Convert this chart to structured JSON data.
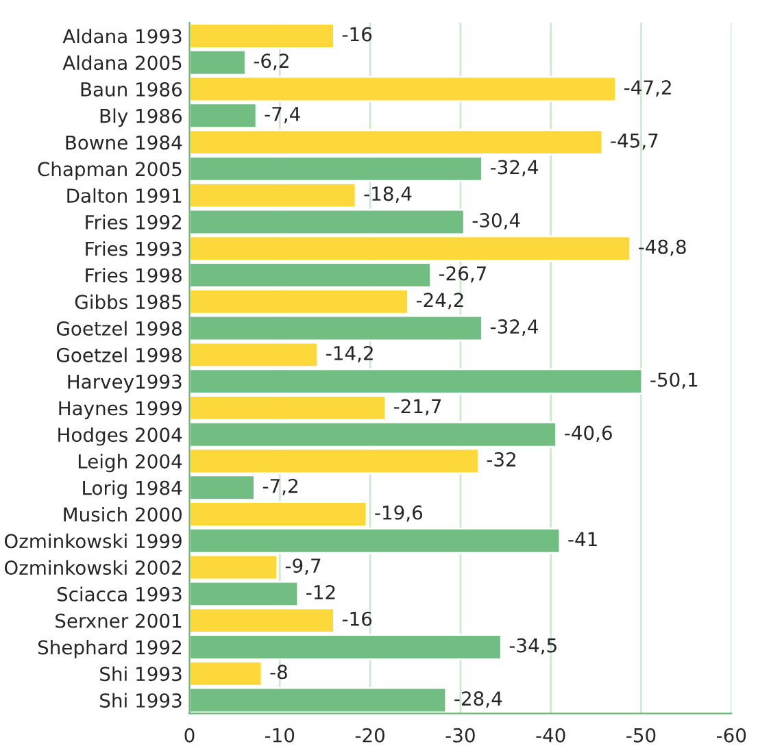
{
  "chart_data": {
    "type": "bar",
    "orientation": "horizontal",
    "categories": [
      "Aldana 1993",
      "Aldana 2005",
      "Baun 1986",
      "Bly 1986",
      "Bowne 1984",
      "Chapman 2005",
      "Dalton 1991",
      "Fries 1992",
      "Fries 1993",
      "Fries 1998",
      "Gibbs 1985",
      "Goetzel 1998",
      "Goetzel 1998",
      "Harvey1993",
      "Haynes 1999",
      "Hodges 2004",
      "Leigh 2004",
      "Lorig 1984",
      "Musich 2000",
      "Ozminkowski 1999",
      "Ozminkowski 2002",
      "Sciacca 1993",
      "Serxner 2001",
      "Shephard 1992",
      "Shi 1993",
      "Shi 1993"
    ],
    "values": [
      -16,
      -6.2,
      -47.2,
      -7.4,
      -45.7,
      -32.4,
      -18.4,
      -30.4,
      -48.8,
      -26.7,
      -24.2,
      -32.4,
      -14.2,
      -50.1,
      -21.7,
      -40.6,
      -32,
      -7.2,
      -19.6,
      -41,
      -9.7,
      -12,
      -16,
      -34.5,
      -8,
      -28.4
    ],
    "value_labels": [
      "-16",
      "-6,2",
      "-47,2",
      "-7,4",
      "-45,7",
      "-32,4",
      "-18,4",
      "-30,4",
      "-48,8",
      "-26,7",
      "-24,2",
      "-32,4",
      "-14,2",
      "-50,1",
      "-21,7",
      "-40,6",
      "-32",
      "-7,2",
      "-19,6",
      "-41",
      "-9,7",
      "-12",
      "-16",
      "-34,5",
      "-8",
      "-28,4"
    ],
    "colors": [
      "#fdd83a",
      "#72bd82",
      "#fdd83a",
      "#72bd82",
      "#fdd83a",
      "#72bd82",
      "#fdd83a",
      "#72bd82",
      "#fdd83a",
      "#72bd82",
      "#fdd83a",
      "#72bd82",
      "#fdd83a",
      "#72bd82",
      "#fdd83a",
      "#72bd82",
      "#fdd83a",
      "#72bd82",
      "#fdd83a",
      "#72bd82",
      "#fdd83a",
      "#72bd82",
      "#fdd83a",
      "#72bd82",
      "#fdd83a",
      "#72bd82"
    ],
    "xlim": [
      0,
      -60
    ],
    "xticks": [
      0,
      -10,
      -20,
      -30,
      -40,
      -50,
      -60
    ],
    "grid": "x"
  }
}
